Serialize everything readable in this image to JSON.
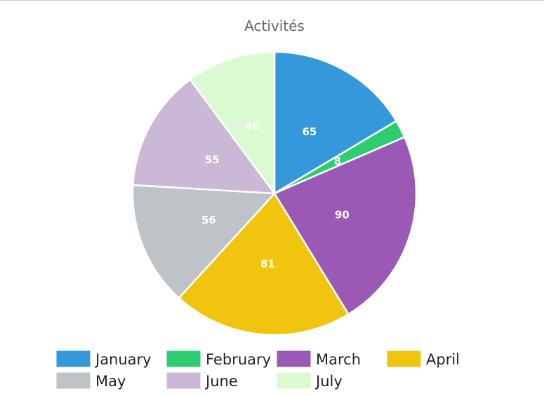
{
  "chart_data": {
    "type": "pie",
    "title": "Activités",
    "categories": [
      "January",
      "February",
      "March",
      "April",
      "May",
      "June",
      "July"
    ],
    "values": [
      65,
      8,
      90,
      81,
      56,
      55,
      40
    ],
    "colors": [
      "#3498db",
      "#2ecc71",
      "#9b59b6",
      "#f1c40f",
      "#bdc3c7",
      "#cbb8d7",
      "#dafbd1"
    ],
    "legend_placement": "bottom"
  }
}
